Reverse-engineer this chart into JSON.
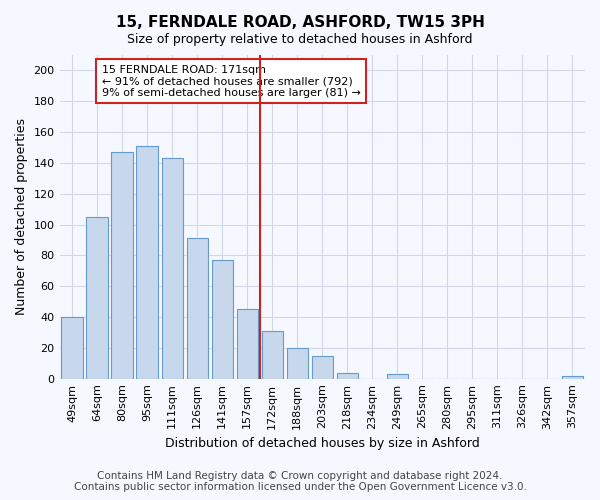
{
  "title": "15, FERNDALE ROAD, ASHFORD, TW15 3PH",
  "subtitle": "Size of property relative to detached houses in Ashford",
  "xlabel": "Distribution of detached houses by size in Ashford",
  "ylabel": "Number of detached properties",
  "categories": [
    "49sqm",
    "64sqm",
    "80sqm",
    "95sqm",
    "111sqm",
    "126sqm",
    "141sqm",
    "157sqm",
    "172sqm",
    "188sqm",
    "203sqm",
    "218sqm",
    "234sqm",
    "249sqm",
    "265sqm",
    "280sqm",
    "295sqm",
    "311sqm",
    "326sqm",
    "342sqm",
    "357sqm"
  ],
  "values": [
    40,
    105,
    147,
    151,
    143,
    91,
    77,
    45,
    31,
    20,
    15,
    4,
    0,
    3,
    0,
    0,
    0,
    0,
    0,
    0,
    2
  ],
  "bar_color": "#c8d8ec",
  "bar_edge_color": "#6699cc",
  "highlight_index": 8,
  "highlight_line_color": "#cc2222",
  "annotation_line1": "15 FERNDALE ROAD: 171sqm",
  "annotation_line2": "← 91% of detached houses are smaller (792)",
  "annotation_line3": "9% of semi-detached houses are larger (81) →",
  "annotation_box_color": "#ffffff",
  "annotation_box_edge": "#cc2222",
  "ylim": [
    0,
    210
  ],
  "yticks": [
    0,
    20,
    40,
    60,
    80,
    100,
    120,
    140,
    160,
    180,
    200
  ],
  "footer_line1": "Contains HM Land Registry data © Crown copyright and database right 2024.",
  "footer_line2": "Contains public sector information licensed under the Open Government Licence v3.0.",
  "bg_color": "#f5f8ff",
  "plot_bg_color": "#f5f8ff",
  "grid_color": "#d0d8e8",
  "title_fontsize": 11,
  "subtitle_fontsize": 9,
  "axis_label_fontsize": 9,
  "tick_fontsize": 8,
  "footer_fontsize": 7.5
}
